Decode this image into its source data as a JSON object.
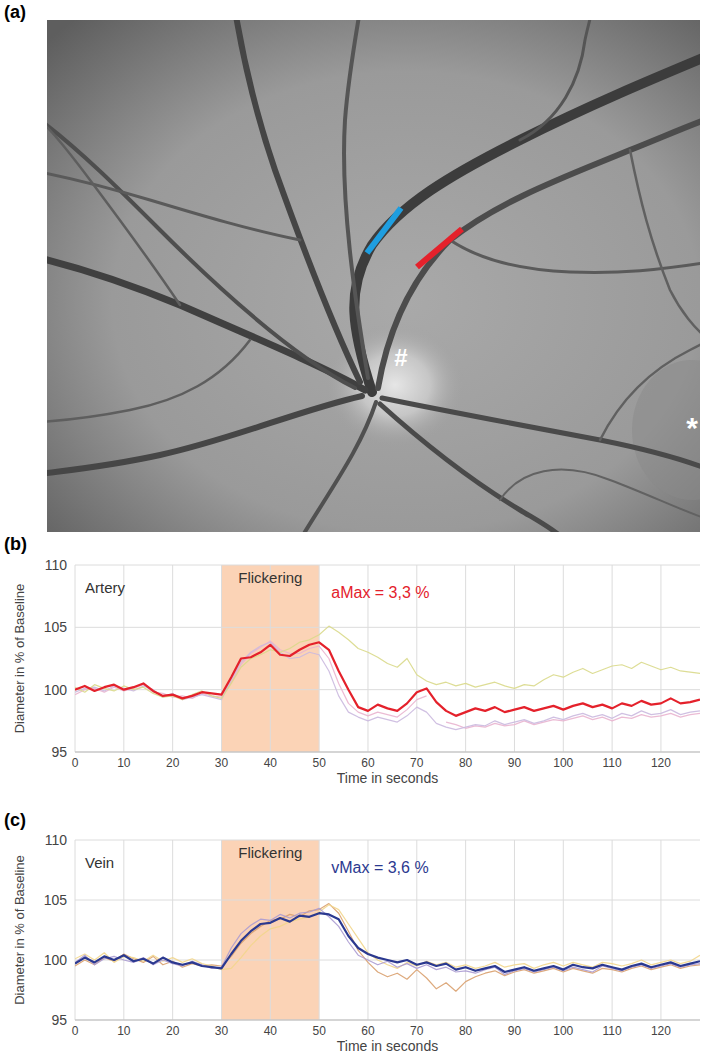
{
  "panel_labels": [
    "(a)",
    "(b)",
    "(c)"
  ],
  "image": {
    "markers": [
      {
        "text": "#"
      },
      {
        "text": "*"
      }
    ]
  },
  "chart_data": [
    {
      "type": "line",
      "title": "Artery",
      "xlabel": "Time in seconds",
      "ylabel": "Diameter in % of Baseline",
      "xlim": [
        0,
        128
      ],
      "xticks": [
        0,
        10,
        20,
        30,
        40,
        50,
        60,
        70,
        80,
        90,
        100,
        110,
        120
      ],
      "ylim": [
        95,
        110
      ],
      "yticks": [
        95,
        100,
        105,
        110
      ],
      "grid": true,
      "annotations": [
        {
          "text": "Flickering",
          "x": [
            30,
            50
          ],
          "color": "#fbd3b6"
        },
        {
          "text": "aMax = 3,3 %",
          "color": "#e4212b"
        }
      ],
      "x": [
        0,
        2,
        4,
        6,
        8,
        10,
        12,
        14,
        16,
        18,
        20,
        22,
        24,
        26,
        28,
        30,
        32,
        34,
        36,
        38,
        40,
        42,
        44,
        46,
        48,
        50,
        52,
        54,
        56,
        58,
        60,
        62,
        64,
        66,
        68,
        70,
        72,
        74,
        76,
        78,
        80,
        82,
        84,
        86,
        88,
        90,
        92,
        94,
        96,
        98,
        100,
        102,
        104,
        106,
        108,
        110,
        112,
        114,
        116,
        118,
        120,
        122,
        124,
        126,
        128
      ],
      "series": [
        {
          "color": "#e4212b",
          "values": [
            100,
            100.3,
            99.9,
            100.2,
            100.4,
            100,
            100.2,
            100.5,
            99.9,
            99.5,
            99.6,
            99.3,
            99.5,
            99.8,
            99.7,
            99.6,
            101,
            102.5,
            102.6,
            103,
            103.6,
            102.8,
            102.7,
            103.2,
            103.6,
            103.8,
            103.2,
            101.5,
            100,
            98.6,
            98.3,
            98.8,
            98.5,
            98.3,
            98.9,
            99.8,
            100.1,
            99,
            98.3,
            97.9,
            98.2,
            98.5,
            98.3,
            98.6,
            98.2,
            98.4,
            98.6,
            98.3,
            98.5,
            98.7,
            98.4,
            98.7,
            98.9,
            98.6,
            98.8,
            98.5,
            98.9,
            98.7,
            99.1,
            98.8,
            98.9,
            99.3,
            98.9,
            99,
            99.2
          ]
        },
        {
          "color": "#d9d98a",
          "values": [
            100.2,
            99.8,
            100.4,
            100.1,
            99.9,
            100.3,
            100,
            100.2,
            99.7,
            99.4,
            99.5,
            99.2,
            99.6,
            99.9,
            99.5,
            99.3,
            100.5,
            101.8,
            102.5,
            102.8,
            103.2,
            103,
            103.3,
            103.8,
            104,
            104.4,
            105.1,
            104.6,
            104,
            103.3,
            103,
            102.6,
            102.1,
            101.8,
            102.5,
            101.2,
            100.7,
            100.4,
            100.6,
            100.3,
            100.5,
            100.2,
            100.4,
            100.6,
            100.3,
            100.1,
            100.4,
            100.3,
            100.8,
            101.2,
            101,
            101.4,
            101.7,
            101.3,
            101.6,
            101.9,
            102,
            101.7,
            102.2,
            101.9,
            101.6,
            101.8,
            101.5,
            101.4,
            101.3
          ]
        },
        {
          "color": "#cbb9df",
          "values": [
            99.8,
            100.1,
            100.2,
            99.9,
            100.3,
            100.1,
            99.9,
            100.3,
            100,
            99.4,
            99.7,
            99.2,
            99.4,
            99.6,
            99.4,
            99.2,
            100.8,
            102.2,
            103,
            103.5,
            103.8,
            103,
            102.5,
            102.6,
            103,
            102.8,
            101.5,
            99.5,
            98.2,
            97.8,
            97.5,
            97.8,
            97.6,
            97.4,
            97.9,
            98.6,
            98.2,
            97.3,
            97,
            96.8,
            97,
            97.2,
            97.1,
            97.5,
            97.2,
            97.4,
            97.6,
            97.3,
            97.5,
            97.8,
            97.6,
            97.9,
            98.1,
            97.8,
            98,
            97.7,
            98.1,
            97.9,
            98.3,
            98,
            98.1,
            98.4,
            98,
            98.2,
            98.3
          ]
        },
        {
          "color": "#e9b4cf",
          "values": [
            99.6,
            100,
            100.1,
            99.8,
            100.2,
            99.9,
            100.1,
            100.4,
            99.8,
            99.7,
            99.4,
            99.5,
            99.3,
            99.7,
            99.5,
            99.4,
            100.6,
            102,
            102.9,
            103.4,
            103.9,
            103.2,
            102.9,
            102.9,
            103.3,
            103.5,
            102.5,
            100.5,
            98.9,
            98.2,
            97.9,
            98.2,
            98,
            97.8,
            98.4,
            99.2,
            99.5,
            null,
            97.4,
            97.2,
            96.9,
            97.1,
            97,
            97.3,
            97.1,
            97.2,
            97.5,
            97.2,
            97.4,
            97.6,
            97.5,
            97.7,
            97.9,
            97.6,
            97.8,
            97.5,
            97.8,
            97.7,
            98,
            97.8,
            97.9,
            98.1,
            97.8,
            98,
            98.1
          ]
        }
      ]
    },
    {
      "type": "line",
      "title": "Vein",
      "xlabel": "Time in seconds",
      "ylabel": "Diameter in % of Baseline",
      "xlim": [
        0,
        128
      ],
      "xticks": [
        0,
        10,
        20,
        30,
        40,
        50,
        60,
        70,
        80,
        90,
        100,
        110,
        120
      ],
      "ylim": [
        95,
        110
      ],
      "yticks": [
        95,
        100,
        105,
        110
      ],
      "grid": true,
      "annotations": [
        {
          "text": "Flickering",
          "x": [
            30,
            50
          ],
          "color": "#fbd3b6"
        },
        {
          "text": "vMax = 3,6 %",
          "color": "#2b3990"
        }
      ],
      "x": [
        0,
        2,
        4,
        6,
        8,
        10,
        12,
        14,
        16,
        18,
        20,
        22,
        24,
        26,
        28,
        30,
        32,
        34,
        36,
        38,
        40,
        42,
        44,
        46,
        48,
        50,
        52,
        54,
        56,
        58,
        60,
        62,
        64,
        66,
        68,
        70,
        72,
        74,
        76,
        78,
        80,
        82,
        84,
        86,
        88,
        90,
        92,
        94,
        96,
        98,
        100,
        102,
        104,
        106,
        108,
        110,
        112,
        114,
        116,
        118,
        120,
        122,
        124,
        126,
        128
      ],
      "series": [
        {
          "color": "#2b3990",
          "values": [
            99.7,
            100.2,
            99.8,
            100.3,
            100,
            100.4,
            99.9,
            100.1,
            99.7,
            100.2,
            99.8,
            99.6,
            99.8,
            99.5,
            99.4,
            99.3,
            100.5,
            101.6,
            102.4,
            103,
            103.1,
            103.5,
            103.2,
            103.7,
            103.6,
            103.9,
            103.8,
            103.4,
            102,
            101,
            100.5,
            100.2,
            100,
            99.8,
            100,
            99.6,
            99.8,
            99.5,
            99.7,
            99.2,
            99.4,
            99.1,
            99.3,
            99.5,
            99,
            99.2,
            99.4,
            99.1,
            99.3,
            99.5,
            99.2,
            99.6,
            99.4,
            99.3,
            99.6,
            99.4,
            99.2,
            99.5,
            99.7,
            99.4,
            99.6,
            99.8,
            99.5,
            99.7,
            99.9
          ]
        },
        {
          "color": "#ab9bd2",
          "values": [
            99.8,
            100.4,
            99.6,
            100.1,
            100.3,
            100,
            99.8,
            100.2,
            99.6,
            100,
            99.7,
            99.5,
            99.9,
            99.6,
            99.3,
            99.4,
            101,
            102.2,
            102.9,
            103.4,
            103.3,
            103.8,
            103.5,
            103.9,
            104,
            104.3,
            103.6,
            102.8,
            101.5,
            100.4,
            100,
            99.6,
            99.9,
            99.4,
            99.7,
            99.3,
            99.6,
            99.2,
            99.4,
            99,
            99.1,
            98.9,
            99.2,
            99.4,
            98.8,
            99.1,
            99.3,
            99,
            99.2,
            99.4,
            99.1,
            99.4,
            99.2,
            99,
            99.5,
            99.3,
            99.1,
            99.4,
            99.6,
            99.3,
            99.5,
            99.7,
            99.4,
            99.6,
            99.7
          ]
        },
        {
          "color": "#f2d68c",
          "values": [
            100.1,
            100.5,
            100,
            100.6,
            99.8,
            100.3,
            100.2,
            99.9,
            100.4,
            99.9,
            100.2,
            99.8,
            100.1,
            99.7,
            99.5,
            99.2,
            99.3,
            100.2,
            101.2,
            102,
            102.6,
            102.8,
            103.2,
            103.4,
            103.6,
            104,
            104.6,
            104.2,
            103,
            101.8,
            100.6,
            100,
            99.6,
            99.3,
            99.8,
            99.5,
            99.9,
            99.6,
            99.8,
            99.4,
            99.6,
            99.3,
            99.5,
            99.8,
            99.4,
            99.6,
            99.7,
            99.3,
            99.6,
            99.8,
            99.5,
            99.8,
            99.6,
            99.4,
            99.8,
            99.7,
            99.5,
            99.7,
            100,
            99.6,
            99.8,
            100,
            99.7,
            99.9,
            100.4
          ]
        },
        {
          "color": "#d9a06e",
          "values": [
            99.5,
            100,
            99.6,
            100.2,
            99.9,
            100.5,
            100.1,
            99.8,
            100.3,
            99.6,
            99.9,
            99.4,
            99.7,
            99.5,
            99.6,
            99.5,
            100.3,
            101.4,
            102.2,
            102.8,
            103.3,
            103.4,
            103.8,
            103.6,
            104.1,
            104.2,
            104.7,
            103.9,
            102.4,
            100.8,
            99.8,
            99,
            98.6,
            98.9,
            98.4,
            99.2,
            98.5,
            97.6,
            98.1,
            97.4,
            98.2,
            98.6,
            98.9,
            99.1,
            98.7,
            99,
            99.2,
            98.9,
            99.1,
            99.3,
            99,
            99.3,
            99.1,
            98.9,
            99.3,
            99.2,
            99,
            99.3,
            99.5,
            99.2,
            99.4,
            99.6,
            99.3,
            99.5,
            99.6
          ]
        }
      ]
    }
  ]
}
